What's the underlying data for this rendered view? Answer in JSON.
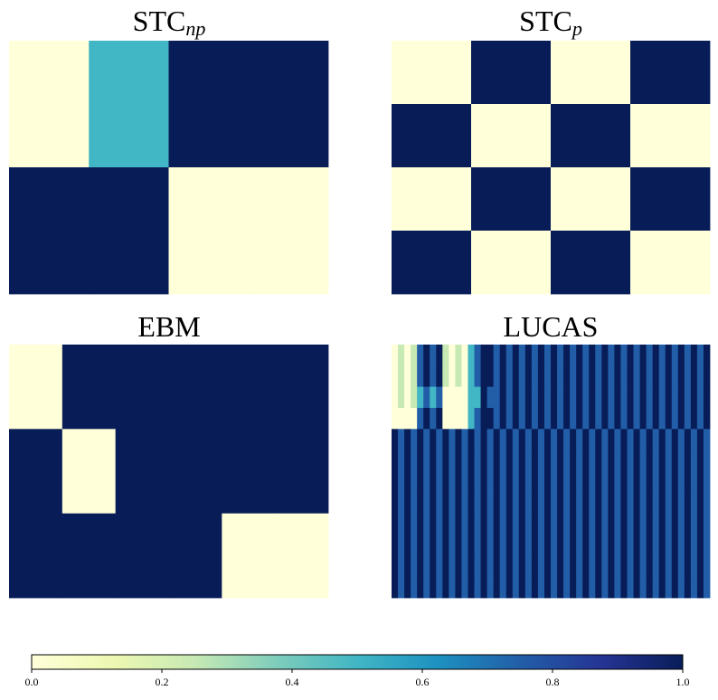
{
  "colormap": {
    "name": "YlGnBu",
    "stops": [
      [
        0.0,
        "#ffffd9"
      ],
      [
        0.125,
        "#edf8b1"
      ],
      [
        0.25,
        "#c7e9b4"
      ],
      [
        0.375,
        "#7fcdbb"
      ],
      [
        0.5,
        "#41b6c4"
      ],
      [
        0.625,
        "#1d91c0"
      ],
      [
        0.75,
        "#225ea8"
      ],
      [
        0.875,
        "#253494"
      ],
      [
        1.0,
        "#081d58"
      ]
    ]
  },
  "chart_data": [
    {
      "type": "heatmap",
      "title": "STC",
      "title_subscript": "np",
      "matrix": [
        [
          0,
          0.5,
          1,
          1
        ],
        [
          1,
          1,
          0,
          0
        ]
      ]
    },
    {
      "type": "heatmap",
      "title": "STC",
      "title_subscript": "p",
      "matrix": [
        [
          0,
          1,
          0,
          1
        ],
        [
          1,
          0,
          1,
          0
        ],
        [
          0,
          1,
          0,
          1
        ],
        [
          1,
          0,
          1,
          0
        ]
      ]
    },
    {
      "type": "heatmap",
      "title": "EBM",
      "title_subscript": "",
      "matrix": [
        [
          0,
          1,
          1,
          1,
          1,
          1
        ],
        [
          1,
          0,
          1,
          1,
          1,
          1
        ],
        [
          1,
          1,
          1,
          1,
          0,
          0
        ]
      ]
    },
    {
      "type": "heatmap",
      "title": "LUCAS",
      "title_subscript": "",
      "matrix": [
        [
          0,
          0.25,
          0,
          0.25,
          0.75,
          1,
          0.75,
          1,
          0.25,
          0,
          0.25,
          0,
          0.5,
          0.75,
          1,
          1,
          0.75,
          1,
          0.75,
          1,
          0.75,
          1,
          0.75,
          1,
          0.75,
          1,
          0.75,
          1,
          0.75,
          1,
          0.75,
          1,
          0.75,
          1,
          0.75,
          1,
          0.75,
          1,
          0.75,
          1,
          0.75,
          1,
          0.75,
          1,
          0.75,
          1,
          0.75,
          1,
          0.75,
          1
        ],
        [
          0,
          0.25,
          0,
          0.25,
          0.75,
          1,
          0.75,
          1,
          0.25,
          0,
          0.25,
          0,
          0.5,
          0.75,
          1,
          1,
          0.75,
          1,
          0.75,
          1,
          0.75,
          1,
          0.75,
          1,
          0.75,
          1,
          0.75,
          1,
          0.75,
          1,
          0.75,
          1,
          0.75,
          1,
          0.75,
          1,
          0.75,
          1,
          0.75,
          1,
          0.75,
          1,
          0.75,
          1,
          0.75,
          1,
          0.75,
          1,
          0.75,
          1
        ],
        [
          0,
          0.25,
          0,
          0.25,
          0.5,
          0.75,
          0.5,
          0.75,
          0,
          0,
          0,
          0,
          0.5,
          0.5,
          1,
          0.75,
          0.75,
          1,
          0.75,
          1,
          0.75,
          1,
          0.75,
          1,
          0.75,
          1,
          0.75,
          1,
          0.75,
          1,
          0.75,
          1,
          0.75,
          1,
          0.75,
          1,
          0.75,
          1,
          0.75,
          1,
          0.75,
          1,
          0.75,
          1,
          0.75,
          1,
          0.75,
          1,
          0.75,
          1
        ],
        [
          0,
          0,
          0,
          0,
          0.75,
          1,
          0.75,
          1,
          0,
          0,
          0,
          0,
          0.5,
          0.75,
          1,
          1,
          0.75,
          1,
          0.75,
          1,
          0.75,
          1,
          0.75,
          1,
          0.75,
          1,
          0.75,
          1,
          0.75,
          1,
          0.75,
          1,
          0.75,
          1,
          0.75,
          1,
          0.75,
          1,
          0.75,
          1,
          0.75,
          1,
          0.75,
          1,
          0.75,
          1,
          0.75,
          1,
          0.75,
          1
        ],
        [
          1,
          0.75,
          1,
          0.75,
          1,
          0.75,
          1,
          0.75,
          1,
          0.75,
          1,
          0.75,
          1,
          0.75,
          1,
          0.75,
          1,
          0.75,
          1,
          0.75,
          1,
          0.75,
          1,
          0.75,
          1,
          0.75,
          1,
          0.75,
          1,
          0.75,
          1,
          0.75,
          1,
          0.75,
          1,
          0.75,
          1,
          0.75,
          1,
          0.75,
          1,
          0.75,
          1,
          0.75,
          1,
          0.75,
          1,
          0.75,
          1,
          0.75
        ],
        [
          1,
          0.75,
          1,
          0.75,
          1,
          0.75,
          1,
          0.75,
          1,
          0.75,
          1,
          0.75,
          1,
          0.75,
          1,
          0.75,
          1,
          0.75,
          1,
          0.75,
          1,
          0.75,
          1,
          0.75,
          1,
          0.75,
          1,
          0.75,
          1,
          0.75,
          1,
          0.75,
          1,
          0.75,
          1,
          0.75,
          1,
          0.75,
          1,
          0.75,
          1,
          0.75,
          1,
          0.75,
          1,
          0.75,
          1,
          0.75,
          1,
          0.75
        ],
        [
          1,
          0.75,
          1,
          0.75,
          1,
          0.75,
          1,
          0.75,
          1,
          0.75,
          1,
          0.75,
          1,
          0.75,
          1,
          0.75,
          1,
          0.75,
          1,
          0.75,
          1,
          0.75,
          1,
          0.75,
          1,
          0.75,
          1,
          0.75,
          1,
          0.75,
          1,
          0.75,
          1,
          0.75,
          1,
          0.75,
          1,
          0.75,
          1,
          0.75,
          1,
          0.75,
          1,
          0.75,
          1,
          0.75,
          1,
          0.75,
          1,
          0.75
        ],
        [
          1,
          0.75,
          1,
          0.75,
          1,
          0.75,
          1,
          0.75,
          1,
          0.75,
          1,
          0.75,
          1,
          0.75,
          1,
          0.75,
          1,
          0.75,
          1,
          0.75,
          1,
          0.75,
          1,
          0.75,
          1,
          0.75,
          1,
          0.75,
          1,
          0.75,
          1,
          0.75,
          1,
          0.75,
          1,
          0.75,
          1,
          0.75,
          1,
          0.75,
          1,
          0.75,
          1,
          0.75,
          1,
          0.75,
          1,
          0.75,
          1,
          0.75
        ],
        [
          1,
          0.75,
          1,
          0.75,
          1,
          0.75,
          1,
          0.75,
          1,
          0.75,
          1,
          0.75,
          1,
          0.75,
          1,
          0.75,
          1,
          0.75,
          1,
          0.75,
          1,
          0.75,
          1,
          0.75,
          1,
          0.75,
          1,
          0.75,
          1,
          0.75,
          1,
          0.75,
          1,
          0.75,
          1,
          0.75,
          1,
          0.75,
          1,
          0.75,
          1,
          0.75,
          1,
          0.75,
          1,
          0.75,
          1,
          0.75,
          1,
          0.75
        ],
        [
          1,
          0.75,
          1,
          0.75,
          1,
          0.75,
          1,
          0.75,
          1,
          0.75,
          1,
          0.75,
          1,
          0.75,
          1,
          0.75,
          1,
          0.75,
          1,
          0.75,
          1,
          0.75,
          1,
          0.75,
          1,
          0.75,
          1,
          0.75,
          1,
          0.75,
          1,
          0.75,
          1,
          0.75,
          1,
          0.75,
          1,
          0.75,
          1,
          0.75,
          1,
          0.75,
          1,
          0.75,
          1,
          0.75,
          1,
          0.75,
          1,
          0.75
        ],
        [
          1,
          0.75,
          1,
          0.75,
          1,
          0.75,
          1,
          0.75,
          1,
          0.75,
          1,
          0.75,
          1,
          0.75,
          1,
          0.75,
          1,
          0.75,
          1,
          0.75,
          1,
          0.75,
          1,
          0.75,
          1,
          0.75,
          1,
          0.75,
          1,
          0.75,
          1,
          0.75,
          1,
          0.75,
          1,
          0.75,
          1,
          0.75,
          1,
          0.75,
          1,
          0.75,
          1,
          0.75,
          1,
          0.75,
          1,
          0.75,
          1,
          0.75
        ],
        [
          1,
          0.75,
          1,
          0.75,
          1,
          0.75,
          1,
          0.75,
          1,
          0.75,
          1,
          0.75,
          1,
          0.75,
          1,
          0.75,
          1,
          0.75,
          1,
          0.75,
          1,
          0.75,
          1,
          0.75,
          1,
          0.75,
          1,
          0.75,
          1,
          0.75,
          1,
          0.75,
          1,
          0.75,
          1,
          0.75,
          1,
          0.75,
          1,
          0.75,
          1,
          0.75,
          1,
          0.75,
          1,
          0.75,
          1,
          0.75,
          1,
          0.75
        ]
      ]
    }
  ],
  "colorbar": {
    "range": [
      0.0,
      1.0
    ],
    "ticks": [
      0.0,
      0.2,
      0.4,
      0.6,
      0.8,
      1.0
    ],
    "tick_labels": [
      "0.0",
      "0.2",
      "0.4",
      "0.6",
      "0.8",
      "1.0"
    ]
  }
}
